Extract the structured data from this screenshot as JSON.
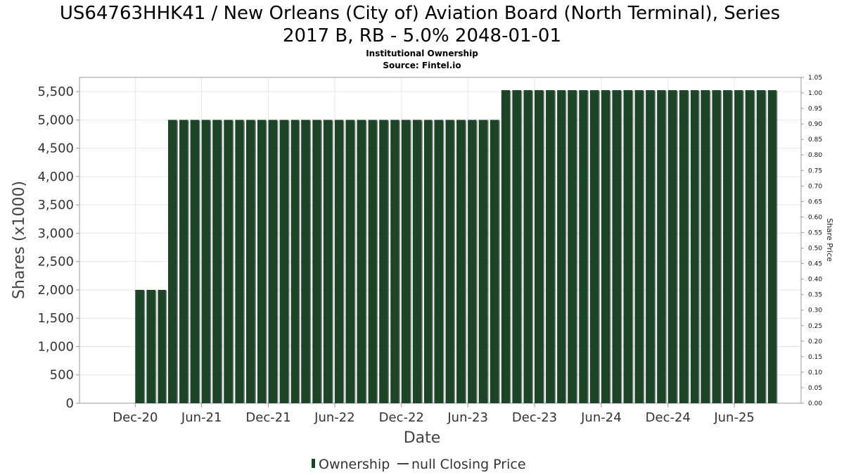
{
  "chart_data": {
    "type": "bar",
    "title_line1": "US64763HHK41 / New Orleans (City of) Aviation Board (North Terminal), Series",
    "title_line2": "2017 B, RB - 5.0% 2048-01-01",
    "subtitle": "Institutional Ownership",
    "source": "Source: Fintel.io",
    "xlabel": "Date",
    "ylabel": "Shares (x1000)",
    "y2label": "Share Price",
    "ylim": [
      0,
      5750
    ],
    "y2lim": [
      0,
      1.05
    ],
    "yticks": [
      "0",
      "500",
      "1,000",
      "1,500",
      "2,000",
      "2,500",
      "3,000",
      "3,500",
      "4,000",
      "4,500",
      "5,000",
      "5,500"
    ],
    "y2ticks": [
      "0.00",
      "0.05",
      "0.10",
      "0.15",
      "0.20",
      "0.25",
      "0.30",
      "0.35",
      "0.40",
      "0.45",
      "0.50",
      "0.55",
      "0.60",
      "0.65",
      "0.70",
      "0.75",
      "0.80",
      "0.85",
      "0.90",
      "0.95",
      "1.00",
      "1.05"
    ],
    "xticks": [
      "Dec-20",
      "Jun-21",
      "Dec-21",
      "Jun-22",
      "Dec-22",
      "Jun-23",
      "Dec-23",
      "Jun-24",
      "Dec-24",
      "Jun-25"
    ],
    "grid": true,
    "legend_position": "bottom",
    "series": [
      {
        "name": "Ownership",
        "color": "#1b4526",
        "values": [
          {
            "date": "2020-12",
            "value": 2000
          },
          {
            "date": "2021-01",
            "value": 2000
          },
          {
            "date": "2021-02",
            "value": 2000
          },
          {
            "date": "2021-03",
            "value": 5000
          },
          {
            "date": "2021-04",
            "value": 5000
          },
          {
            "date": "2021-05",
            "value": 5000
          },
          {
            "date": "2021-06",
            "value": 5000
          },
          {
            "date": "2021-07",
            "value": 5000
          },
          {
            "date": "2021-08",
            "value": 5000
          },
          {
            "date": "2021-09",
            "value": 5000
          },
          {
            "date": "2021-10",
            "value": 5000
          },
          {
            "date": "2021-11",
            "value": 5000
          },
          {
            "date": "2021-12",
            "value": 5000
          },
          {
            "date": "2022-01",
            "value": 5000
          },
          {
            "date": "2022-02",
            "value": 5000
          },
          {
            "date": "2022-03",
            "value": 5000
          },
          {
            "date": "2022-04",
            "value": 5000
          },
          {
            "date": "2022-05",
            "value": 5000
          },
          {
            "date": "2022-06",
            "value": 5000
          },
          {
            "date": "2022-07",
            "value": 5000
          },
          {
            "date": "2022-08",
            "value": 5000
          },
          {
            "date": "2022-09",
            "value": 5000
          },
          {
            "date": "2022-10",
            "value": 5000
          },
          {
            "date": "2022-11",
            "value": 5000
          },
          {
            "date": "2022-12",
            "value": 5000
          },
          {
            "date": "2023-01",
            "value": 5000
          },
          {
            "date": "2023-02",
            "value": 5000
          },
          {
            "date": "2023-03",
            "value": 5000
          },
          {
            "date": "2023-04",
            "value": 5000
          },
          {
            "date": "2023-05",
            "value": 5000
          },
          {
            "date": "2023-06",
            "value": 5000
          },
          {
            "date": "2023-07",
            "value": 5000
          },
          {
            "date": "2023-08",
            "value": 5000
          },
          {
            "date": "2023-09",
            "value": 5525
          },
          {
            "date": "2023-10",
            "value": 5525
          },
          {
            "date": "2023-11",
            "value": 5525
          },
          {
            "date": "2023-12",
            "value": 5525
          },
          {
            "date": "2024-01",
            "value": 5525
          },
          {
            "date": "2024-02",
            "value": 5525
          },
          {
            "date": "2024-03",
            "value": 5525
          },
          {
            "date": "2024-04",
            "value": 5525
          },
          {
            "date": "2024-05",
            "value": 5525
          },
          {
            "date": "2024-06",
            "value": 5525
          },
          {
            "date": "2024-07",
            "value": 5525
          },
          {
            "date": "2024-08",
            "value": 5525
          },
          {
            "date": "2024-09",
            "value": 5525
          },
          {
            "date": "2024-10",
            "value": 5525
          },
          {
            "date": "2024-11",
            "value": 5525
          },
          {
            "date": "2024-12",
            "value": 5525
          },
          {
            "date": "2025-01",
            "value": 5525
          },
          {
            "date": "2025-02",
            "value": 5525
          },
          {
            "date": "2025-03",
            "value": 5525
          },
          {
            "date": "2025-04",
            "value": 5525
          },
          {
            "date": "2025-05",
            "value": 5525
          },
          {
            "date": "2025-06",
            "value": 5525
          },
          {
            "date": "2025-07",
            "value": 5525
          },
          {
            "date": "2025-08",
            "value": 5525
          },
          {
            "date": "2025-09",
            "value": 5525
          }
        ]
      },
      {
        "name": "null Closing Price",
        "color": "#444444",
        "values": []
      }
    ],
    "legend": {
      "ownership_label": "Ownership",
      "price_label": "null Closing Price"
    }
  }
}
